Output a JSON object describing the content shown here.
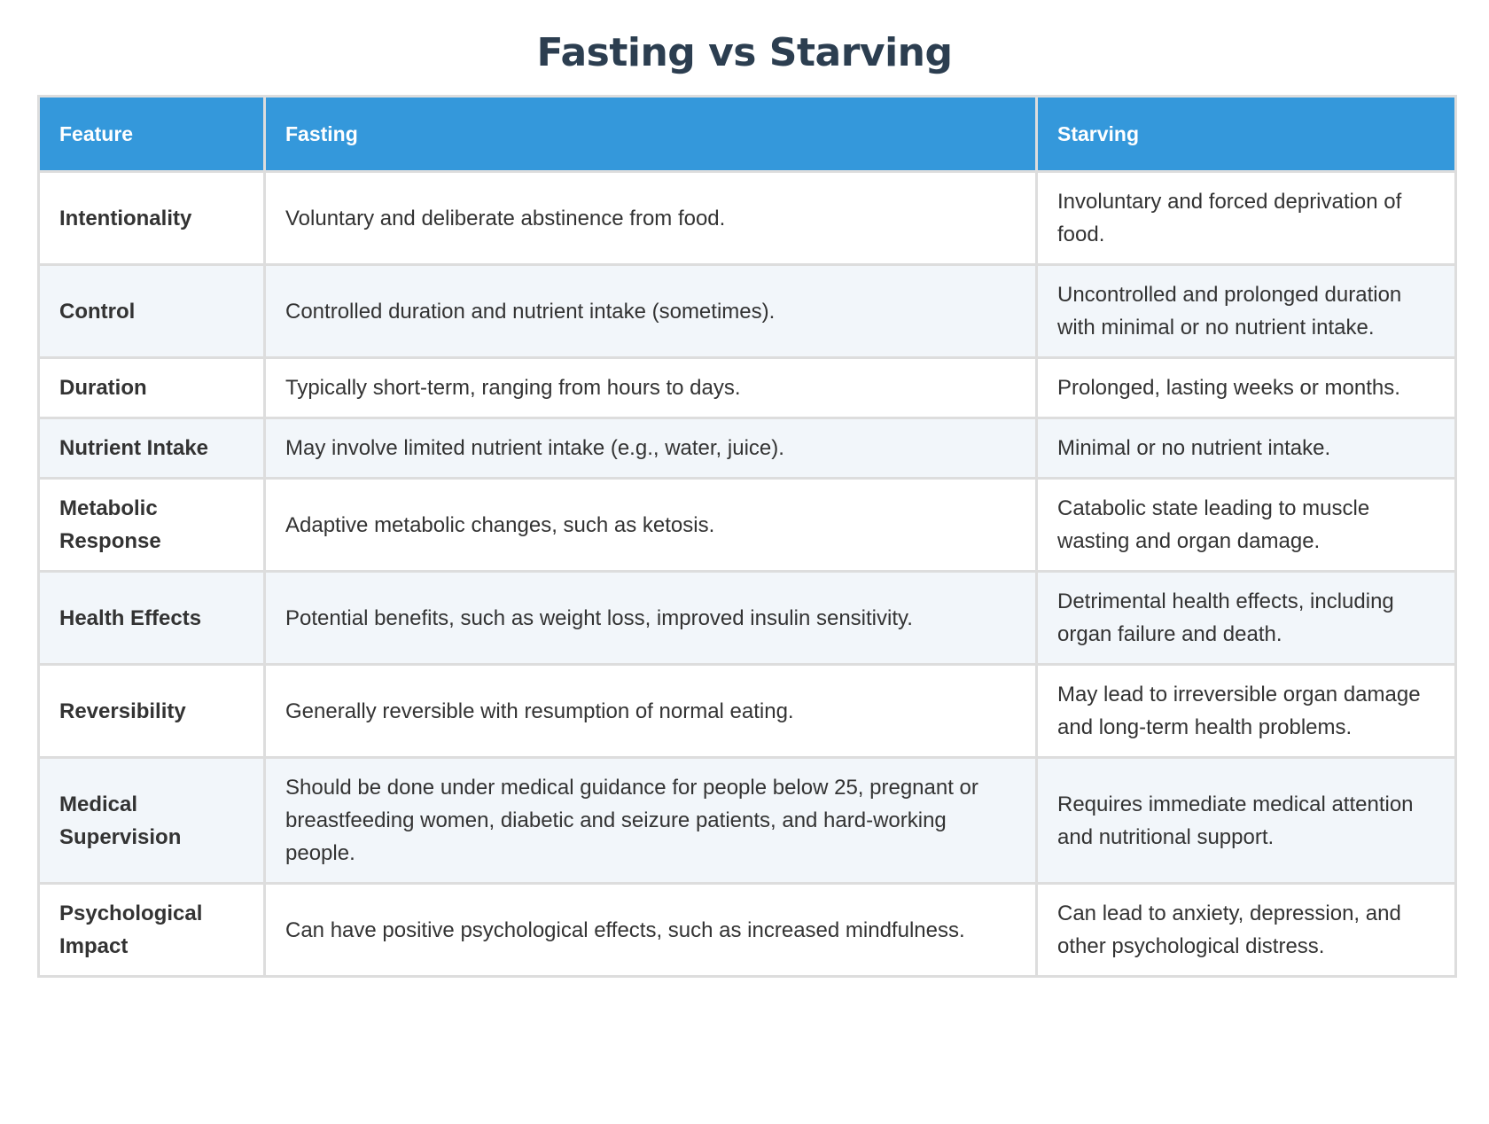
{
  "title": "Fasting vs Starving",
  "table": {
    "headers": [
      "Feature",
      "Fasting",
      "Starving"
    ],
    "rows": [
      {
        "feature": "Intentionality",
        "fasting": "Voluntary and deliberate abstinence from food.",
        "starving": "Involuntary and forced deprivation of food."
      },
      {
        "feature": "Control",
        "fasting": "Controlled duration and nutrient intake (sometimes).",
        "starving": "Uncontrolled and prolonged duration with minimal or no nutrient intake."
      },
      {
        "feature": "Duration",
        "fasting": "Typically short-term, ranging from hours to days.",
        "starving": "Prolonged, lasting weeks or months."
      },
      {
        "feature": "Nutrient Intake",
        "fasting": "May involve limited nutrient intake (e.g., water, juice).",
        "starving": "Minimal or no nutrient intake."
      },
      {
        "feature": "Metabolic Response",
        "fasting": "Adaptive metabolic changes, such as ketosis.",
        "starving": "Catabolic state leading to muscle wasting and organ damage."
      },
      {
        "feature": "Health Effects",
        "fasting": "Potential benefits, such as weight loss, improved insulin sensitivity.",
        "starving": "Detrimental health effects, including organ failure and death."
      },
      {
        "feature": "Reversibility",
        "fasting": "Generally reversible with resumption of normal eating.",
        "starving": "May lead to irreversible organ damage and long-term health problems."
      },
      {
        "feature": "Medical Supervision",
        "fasting": "Should be done under medical guidance for people below 25, pregnant or breastfeeding women, diabetic and seizure patients, and hard-working people.",
        "starving": "Requires immediate medical attention and nutritional support."
      },
      {
        "feature": "Psychological Impact",
        "fasting": "Can have positive psychological effects, such as increased mindfulness.",
        "starving": "Can lead to anxiety, depression, and other psychological distress."
      }
    ]
  }
}
